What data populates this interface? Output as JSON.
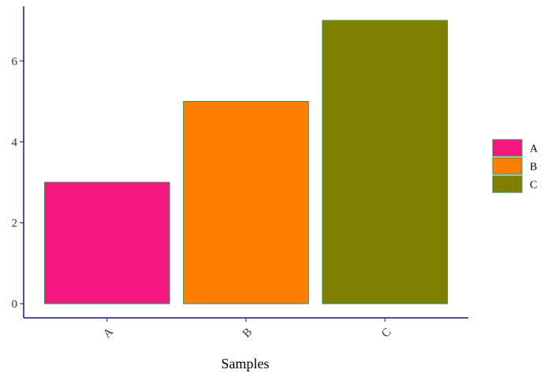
{
  "chart_data": {
    "type": "bar",
    "categories": [
      "A",
      "B",
      "C"
    ],
    "values": [
      3,
      5,
      7
    ],
    "colors": [
      "#F5177F",
      "#FF8000",
      "#808000"
    ],
    "bar_outline_color": "#2E8B57",
    "axis_color": "#191970",
    "xlabel": "Samples",
    "ylabel": "",
    "title": "",
    "ylim": [
      -0.35,
      7.35
    ],
    "yticks": [
      0,
      2,
      4,
      6
    ],
    "legend": {
      "position": "right",
      "entries": [
        "A",
        "B",
        "C"
      ]
    },
    "grid": false
  }
}
